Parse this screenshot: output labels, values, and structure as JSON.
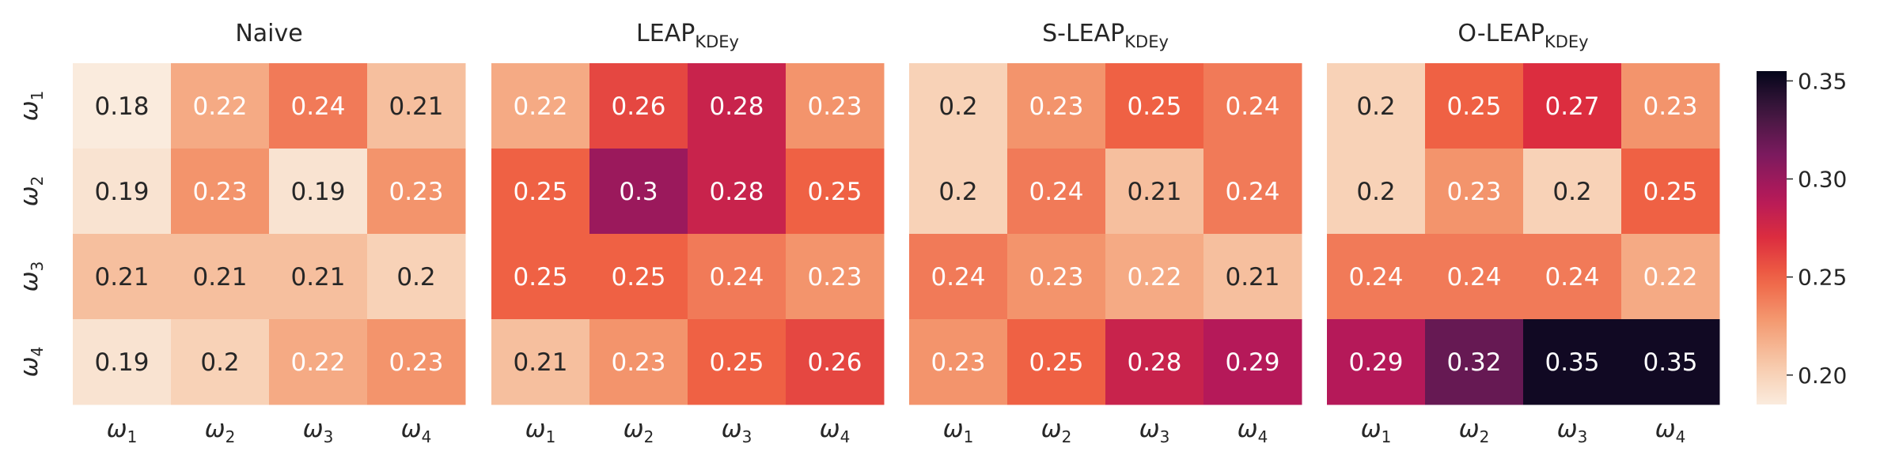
{
  "chart_data": [
    {
      "type": "heatmap",
      "title": "Naive",
      "title_main": "Naive",
      "title_sub": "",
      "rows": [
        "ω1",
        "ω2",
        "ω3",
        "ω4"
      ],
      "cols": [
        "ω1",
        "ω2",
        "ω3",
        "ω4"
      ],
      "values": [
        [
          0.18,
          0.22,
          0.24,
          0.21
        ],
        [
          0.19,
          0.23,
          0.19,
          0.23
        ],
        [
          0.21,
          0.21,
          0.21,
          0.2
        ],
        [
          0.19,
          0.2,
          0.22,
          0.23
        ]
      ],
      "show_row_labels": true
    },
    {
      "type": "heatmap",
      "title": "LEAP KDEy",
      "title_main": "LEAP",
      "title_sub": "KDEy",
      "rows": [
        "ω1",
        "ω2",
        "ω3",
        "ω4"
      ],
      "cols": [
        "ω1",
        "ω2",
        "ω3",
        "ω4"
      ],
      "values": [
        [
          0.22,
          0.26,
          0.28,
          0.23
        ],
        [
          0.25,
          0.3,
          0.28,
          0.25
        ],
        [
          0.25,
          0.25,
          0.24,
          0.23
        ],
        [
          0.21,
          0.23,
          0.25,
          0.26
        ]
      ],
      "show_row_labels": false
    },
    {
      "type": "heatmap",
      "title": "S-LEAP KDEy",
      "title_main": "S-LEAP",
      "title_sub": "KDEy",
      "rows": [
        "ω1",
        "ω2",
        "ω3",
        "ω4"
      ],
      "cols": [
        "ω1",
        "ω2",
        "ω3",
        "ω4"
      ],
      "values": [
        [
          0.2,
          0.23,
          0.25,
          0.24
        ],
        [
          0.2,
          0.24,
          0.21,
          0.24
        ],
        [
          0.24,
          0.23,
          0.22,
          0.21
        ],
        [
          0.23,
          0.25,
          0.28,
          0.29
        ]
      ],
      "show_row_labels": false
    },
    {
      "type": "heatmap",
      "title": "O-LEAP KDEy",
      "title_main": "O-LEAP",
      "title_sub": "KDEy",
      "rows": [
        "ω1",
        "ω2",
        "ω3",
        "ω4"
      ],
      "cols": [
        "ω1",
        "ω2",
        "ω3",
        "ω4"
      ],
      "values": [
        [
          0.2,
          0.25,
          0.27,
          0.23
        ],
        [
          0.2,
          0.23,
          0.2,
          0.25
        ],
        [
          0.24,
          0.24,
          0.24,
          0.22
        ],
        [
          0.29,
          0.32,
          0.35,
          0.35
        ]
      ],
      "show_row_labels": false
    }
  ],
  "colorbar": {
    "vmin": 0.185,
    "vmax": 0.355,
    "ticks": [
      0.2,
      0.25,
      0.3,
      0.35
    ],
    "tick_labels": [
      "0.20",
      "0.25",
      "0.30",
      "0.35"
    ],
    "colormap": "rocket_r"
  },
  "colors": {
    "text_dark": "#262626",
    "text_light": "#ffffff",
    "background": "#ffffff"
  }
}
